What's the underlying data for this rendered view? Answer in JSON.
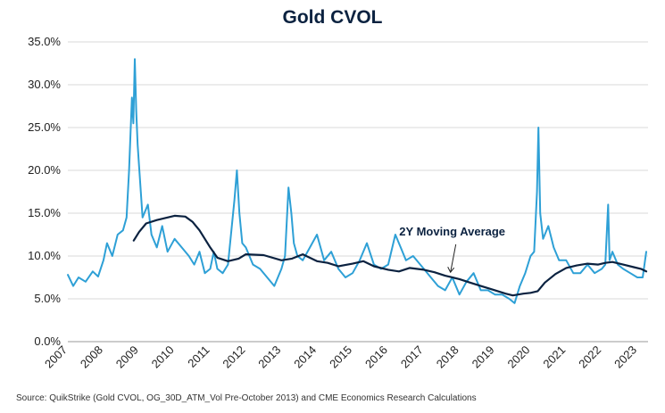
{
  "chart_data": {
    "type": "line",
    "title": "Gold CVOL",
    "xlabel": "",
    "ylabel": "",
    "xlim": [
      2007.0,
      2023.3
    ],
    "ylim": [
      0,
      35
    ],
    "y_ticks": [
      "0.0%",
      "5.0%",
      "10.0%",
      "15.0%",
      "20.0%",
      "25.0%",
      "30.0%",
      "35.0%"
    ],
    "y_tick_values": [
      0,
      5,
      10,
      15,
      20,
      25,
      30,
      35
    ],
    "x_ticks": [
      "2007",
      "2008",
      "2009",
      "2010",
      "2011",
      "2012",
      "2013",
      "2014",
      "2015",
      "2016",
      "2017",
      "2018",
      "2019",
      "2020",
      "2021",
      "2022",
      "2023"
    ],
    "x_tick_values": [
      2007,
      2008,
      2009,
      2010,
      2011,
      2012,
      2013,
      2014,
      2015,
      2016,
      2017,
      2018,
      2019,
      2020,
      2021,
      2022,
      2023
    ],
    "grid": "horizontal",
    "colors": {
      "cvol": "#2ea0d6",
      "moving_average": "#0b2240",
      "grid": "#d9d9d9",
      "title": "#0b2240"
    },
    "series": [
      {
        "name": "Gold CVOL",
        "x": [
          2007.0,
          2007.15,
          2007.3,
          2007.5,
          2007.7,
          2007.85,
          2008.0,
          2008.1,
          2008.25,
          2008.4,
          2008.55,
          2008.65,
          2008.72,
          2008.8,
          2008.84,
          2008.88,
          2008.92,
          2008.96,
          2009.0,
          2009.1,
          2009.25,
          2009.35,
          2009.5,
          2009.65,
          2009.8,
          2010.0,
          2010.2,
          2010.4,
          2010.55,
          2010.7,
          2010.85,
          2011.0,
          2011.1,
          2011.2,
          2011.35,
          2011.5,
          2011.62,
          2011.68,
          2011.75,
          2011.82,
          2011.9,
          2012.0,
          2012.2,
          2012.4,
          2012.6,
          2012.8,
          2013.0,
          2013.1,
          2013.2,
          2013.28,
          2013.35,
          2013.45,
          2013.6,
          2013.8,
          2014.0,
          2014.2,
          2014.4,
          2014.6,
          2014.8,
          2015.0,
          2015.2,
          2015.4,
          2015.6,
          2015.8,
          2016.0,
          2016.2,
          2016.35,
          2016.5,
          2016.7,
          2016.9,
          2017.0,
          2017.2,
          2017.4,
          2017.6,
          2017.8,
          2018.0,
          2018.2,
          2018.4,
          2018.6,
          2018.8,
          2019.0,
          2019.2,
          2019.4,
          2019.55,
          2019.7,
          2019.85,
          2020.0,
          2020.1,
          2020.18,
          2020.22,
          2020.27,
          2020.35,
          2020.5,
          2020.65,
          2020.8,
          2021.0,
          2021.2,
          2021.4,
          2021.6,
          2021.8,
          2022.0,
          2022.1,
          2022.18,
          2022.22,
          2022.3,
          2022.45,
          2022.6,
          2022.8,
          2023.0,
          2023.15,
          2023.25
        ],
        "y": [
          7.8,
          6.5,
          7.5,
          7.0,
          8.2,
          7.6,
          9.5,
          11.5,
          10.0,
          12.5,
          13.0,
          14.5,
          20.0,
          28.5,
          25.5,
          33.0,
          27.0,
          23.0,
          20.5,
          14.5,
          16.0,
          12.5,
          11.0,
          13.5,
          10.5,
          12.0,
          11.0,
          10.0,
          9.0,
          10.5,
          8.0,
          8.5,
          10.5,
          8.5,
          8.0,
          9.0,
          14.0,
          16.5,
          20.0,
          15.0,
          11.5,
          11.0,
          9.0,
          8.5,
          7.5,
          6.5,
          8.5,
          10.0,
          18.0,
          15.0,
          11.5,
          10.0,
          9.5,
          11.0,
          12.5,
          9.5,
          10.5,
          8.5,
          7.5,
          8.0,
          9.5,
          11.5,
          9.0,
          8.5,
          9.0,
          12.5,
          11.0,
          9.5,
          10.0,
          9.0,
          8.5,
          7.5,
          6.5,
          6.0,
          7.5,
          5.5,
          7.0,
          8.0,
          6.0,
          6.0,
          5.5,
          5.5,
          5.0,
          4.5,
          6.5,
          8.0,
          10.0,
          10.5,
          17.5,
          25.0,
          15.0,
          12.0,
          13.5,
          11.0,
          9.5,
          9.5,
          8.0,
          8.0,
          9.0,
          8.0,
          8.5,
          9.0,
          16.0,
          9.5,
          10.5,
          9.0,
          8.5,
          8.0,
          7.5,
          7.5,
          10.5
        ]
      },
      {
        "name": "2Y Moving Average",
        "x": [
          2008.85,
          2009.0,
          2009.2,
          2009.5,
          2009.8,
          2010.0,
          2010.3,
          2010.5,
          2010.7,
          2011.0,
          2011.2,
          2011.5,
          2011.8,
          2012.0,
          2012.5,
          2013.0,
          2013.3,
          2013.6,
          2014.0,
          2014.3,
          2014.6,
          2015.0,
          2015.3,
          2015.6,
          2016.0,
          2016.3,
          2016.6,
          2017.0,
          2017.3,
          2017.6,
          2018.0,
          2018.3,
          2018.6,
          2019.0,
          2019.3,
          2019.5,
          2019.8,
          2020.0,
          2020.2,
          2020.4,
          2020.7,
          2021.0,
          2021.3,
          2021.6,
          2021.9,
          2022.1,
          2022.3,
          2022.6,
          2022.9,
          2023.1,
          2023.25
        ],
        "y": [
          11.8,
          12.8,
          13.8,
          14.2,
          14.5,
          14.7,
          14.6,
          14.0,
          13.0,
          11.0,
          9.8,
          9.4,
          9.7,
          10.2,
          10.1,
          9.5,
          9.7,
          10.2,
          9.4,
          9.2,
          8.8,
          9.1,
          9.4,
          8.8,
          8.4,
          8.2,
          8.6,
          8.4,
          8.1,
          7.7,
          7.3,
          6.9,
          6.5,
          6.0,
          5.6,
          5.4,
          5.6,
          5.7,
          5.9,
          6.9,
          7.9,
          8.6,
          8.9,
          9.1,
          9.0,
          9.2,
          9.3,
          9.0,
          8.7,
          8.5,
          8.2
        ]
      }
    ],
    "annotations": [
      {
        "text": "2Y Moving Average",
        "x": 2017.8,
        "y": 12.4,
        "arrow_to": [
          2017.75,
          8.1
        ]
      }
    ]
  },
  "source": "Source: QuikStrike (Gold CVOL, OG_30D_ATM_Vol Pre-October 2013) and CME Economics Research Calculations"
}
